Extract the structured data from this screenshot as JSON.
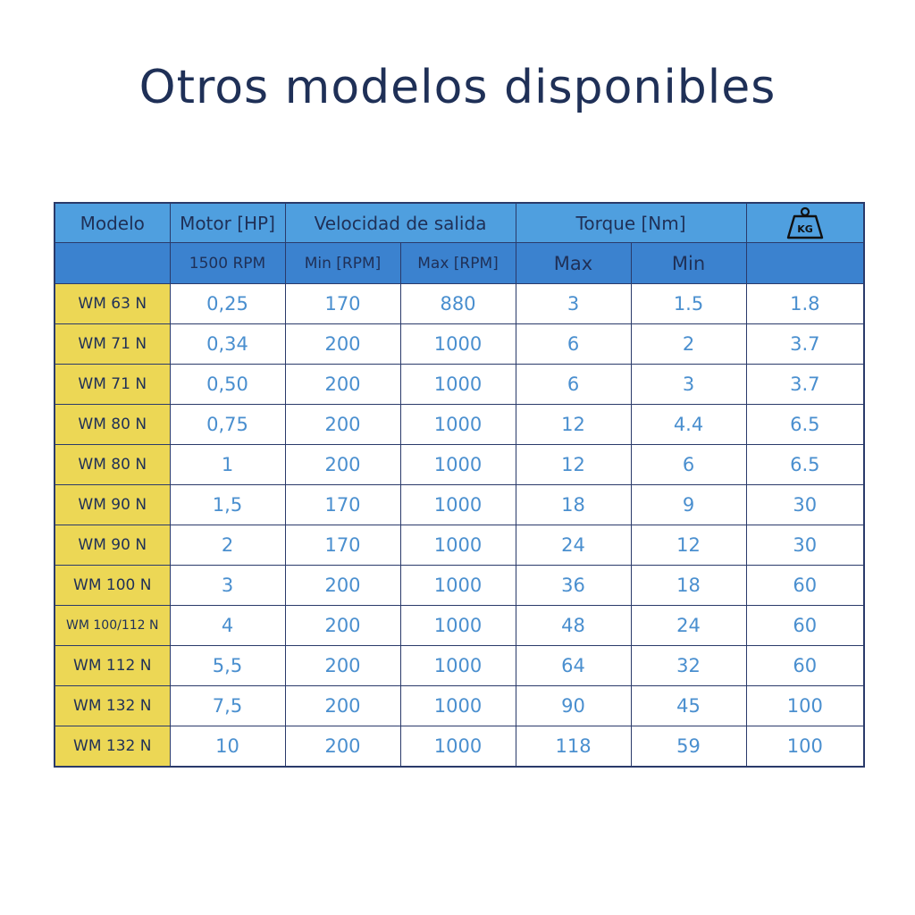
{
  "title": "Otros modelos disponibles",
  "table": {
    "header_top": {
      "modelo": "Modelo",
      "motor": "Motor [HP]",
      "velocidad": "Velocidad de salida",
      "torque": "Torque [Nm]",
      "weight_icon": "weight-kg-icon",
      "weight_icon_text": "KG"
    },
    "header_sub": {
      "motor_rpm": "1500 RPM",
      "vel_min": "Min [RPM]",
      "vel_max": "Max [RPM]",
      "torque_max": "Max",
      "torque_min": "Min"
    },
    "rows": [
      {
        "modelo": "WM 63 N",
        "motor": "0,25",
        "vmin": "170",
        "vmax": "880",
        "tmax": "3",
        "tmin": "1.5",
        "peso": "1.8"
      },
      {
        "modelo": "WM 71 N",
        "motor": "0,34",
        "vmin": "200",
        "vmax": "1000",
        "tmax": "6",
        "tmin": "2",
        "peso": "3.7"
      },
      {
        "modelo": "WM 71 N",
        "motor": "0,50",
        "vmin": "200",
        "vmax": "1000",
        "tmax": "6",
        "tmin": "3",
        "peso": "3.7"
      },
      {
        "modelo": "WM 80 N",
        "motor": "0,75",
        "vmin": "200",
        "vmax": "1000",
        "tmax": "12",
        "tmin": "4.4",
        "peso": "6.5"
      },
      {
        "modelo": "WM 80 N",
        "motor": "1",
        "vmin": "200",
        "vmax": "1000",
        "tmax": "12",
        "tmin": "6",
        "peso": "6.5"
      },
      {
        "modelo": "WM 90 N",
        "motor": "1,5",
        "vmin": "170",
        "vmax": "1000",
        "tmax": "18",
        "tmin": "9",
        "peso": "30"
      },
      {
        "modelo": "WM 90 N",
        "motor": "2",
        "vmin": "170",
        "vmax": "1000",
        "tmax": "24",
        "tmin": "12",
        "peso": "30"
      },
      {
        "modelo": "WM 100 N",
        "motor": "3",
        "vmin": "200",
        "vmax": "1000",
        "tmax": "36",
        "tmin": "18",
        "peso": "60"
      },
      {
        "modelo": "WM 100/112 N",
        "motor": "4",
        "vmin": "200",
        "vmax": "1000",
        "tmax": "48",
        "tmin": "24",
        "peso": "60"
      },
      {
        "modelo": "WM 112 N",
        "motor": "5,5",
        "vmin": "200",
        "vmax": "1000",
        "tmax": "64",
        "tmin": "32",
        "peso": "60"
      },
      {
        "modelo": "WM 132 N",
        "motor": "7,5",
        "vmin": "200",
        "vmax": "1000",
        "tmax": "90",
        "tmin": "45",
        "peso": "100"
      },
      {
        "modelo": "WM 132 N",
        "motor": "10",
        "vmin": "200",
        "vmax": "1000",
        "tmax": "118",
        "tmin": "59",
        "peso": "100"
      }
    ]
  },
  "colors": {
    "title": "#1f3057",
    "header_top": "#4f9fdf",
    "header_sub": "#3b82cf",
    "model_cell": "#ecd755",
    "value_text": "#4a8fcf",
    "border": "#2a3a6a"
  }
}
